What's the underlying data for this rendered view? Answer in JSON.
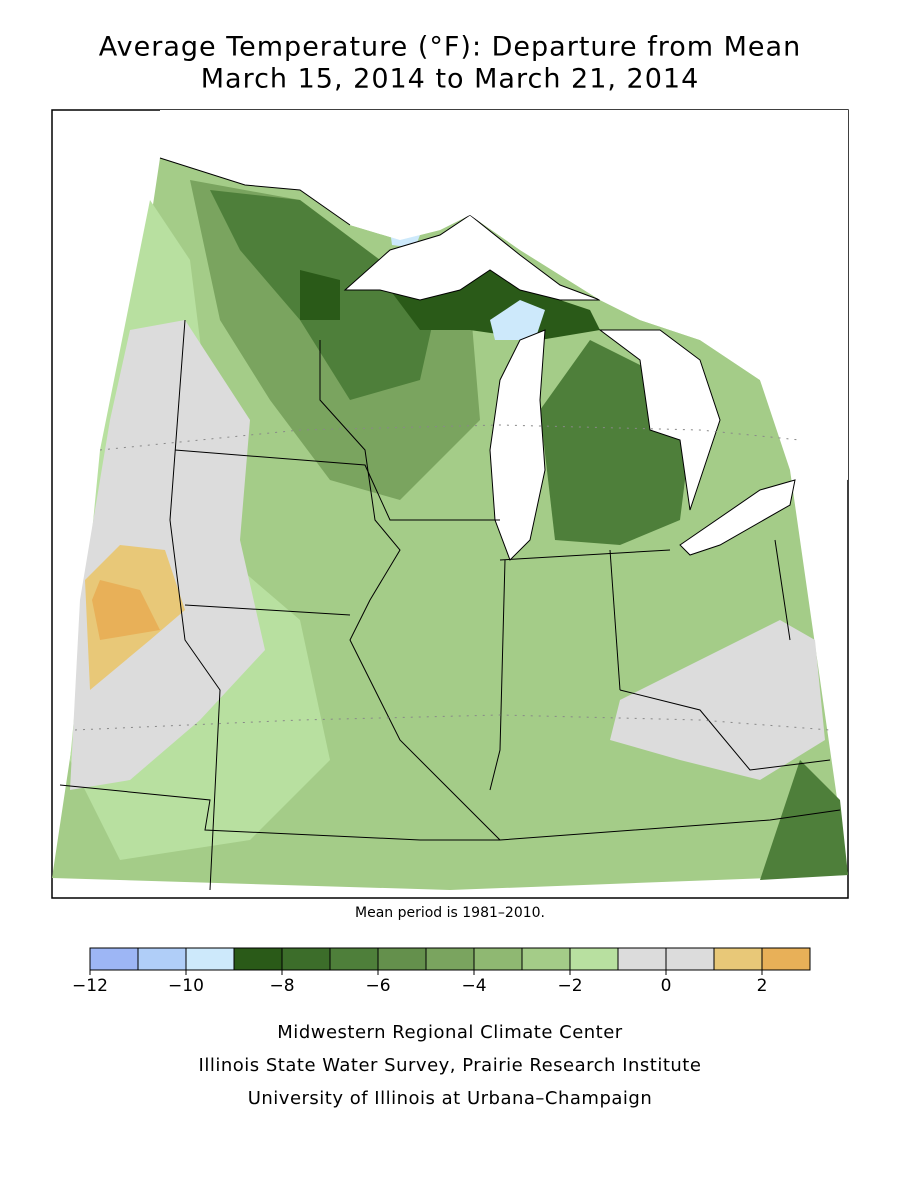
{
  "header": {
    "title": "Average Temperature (°F): Departure from Mean",
    "subtitle": "March 15, 2014 to March 21, 2014"
  },
  "note": "Mean period is 1981–2010.",
  "legend": {
    "bins": [
      -12,
      -11,
      -10,
      -9,
      -8,
      -7,
      -6,
      -5,
      -4,
      -3,
      -2,
      -1,
      0,
      1,
      2,
      3
    ],
    "colors": [
      "#9db6f5",
      "#b0cef8",
      "#cde9fb",
      "#2a5a18",
      "#3c6d2a",
      "#4e7f3a",
      "#64904c",
      "#7aa45f",
      "#8fb872",
      "#a4cc88",
      "#b8e0a0",
      "#dcdcdc",
      "#dcdcdc",
      "#e8c878",
      "#e8b058"
    ],
    "ticks": [
      {
        "value": -12,
        "label": "−12"
      },
      {
        "value": -10,
        "label": "−10"
      },
      {
        "value": -8,
        "label": "−8"
      },
      {
        "value": -6,
        "label": "−6"
      },
      {
        "value": -4,
        "label": "−4"
      },
      {
        "value": -2,
        "label": "−2"
      },
      0,
      2
    ]
  },
  "credits": [
    "Midwestern Regional Climate Center",
    "Illinois State Water Survey, Prairie Research Institute",
    "University of Illinois at Urbana–Champaign"
  ]
}
